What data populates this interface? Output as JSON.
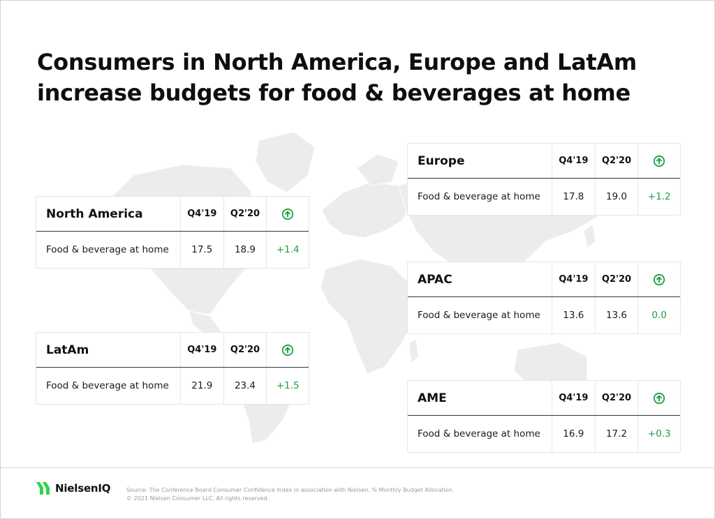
{
  "title": "Consumers in North America, Europe and LatAm increase budgets for food & beverages at home",
  "colors": {
    "accent_green": "#1b9e3e",
    "map_gray": "#ececec",
    "brand_green": "#2fd44a"
  },
  "regions": [
    {
      "name": "North America",
      "col1": "Q4'19",
      "col2": "Q2'20",
      "icon": "arrow-up-circle-icon",
      "metric": "Food & beverage at home",
      "v1": "17.5",
      "v2": "18.9",
      "change": "+1.4"
    },
    {
      "name": "LatAm",
      "col1": "Q4'19",
      "col2": "Q2'20",
      "icon": "arrow-up-circle-icon",
      "metric": "Food & beverage at home",
      "v1": "21.9",
      "v2": "23.4",
      "change": "+1.5"
    },
    {
      "name": "Europe",
      "col1": "Q4'19",
      "col2": "Q2'20",
      "icon": "arrow-up-circle-icon",
      "metric": "Food & beverage at home",
      "v1": "17.8",
      "v2": "19.0",
      "change": "+1.2"
    },
    {
      "name": "APAC",
      "col1": "Q4'19",
      "col2": "Q2'20",
      "icon": "arrow-up-circle-icon",
      "metric": "Food & beverage at home",
      "v1": "13.6",
      "v2": "13.6",
      "change": "0.0"
    },
    {
      "name": "AME",
      "col1": "Q4'19",
      "col2": "Q2'20",
      "icon": "arrow-up-circle-icon",
      "metric": "Food & beverage at home",
      "v1": "16.9",
      "v2": "17.2",
      "change": "+0.3"
    }
  ],
  "footer": {
    "brand": "NielsenIQ",
    "source": "Source: The Conference Board Consumer Confidence Index in association with Nielsen. % Monthly Budget Allocation.",
    "copyright": "© 2021 Nielsen Consumer LLC. All rights reserved."
  }
}
